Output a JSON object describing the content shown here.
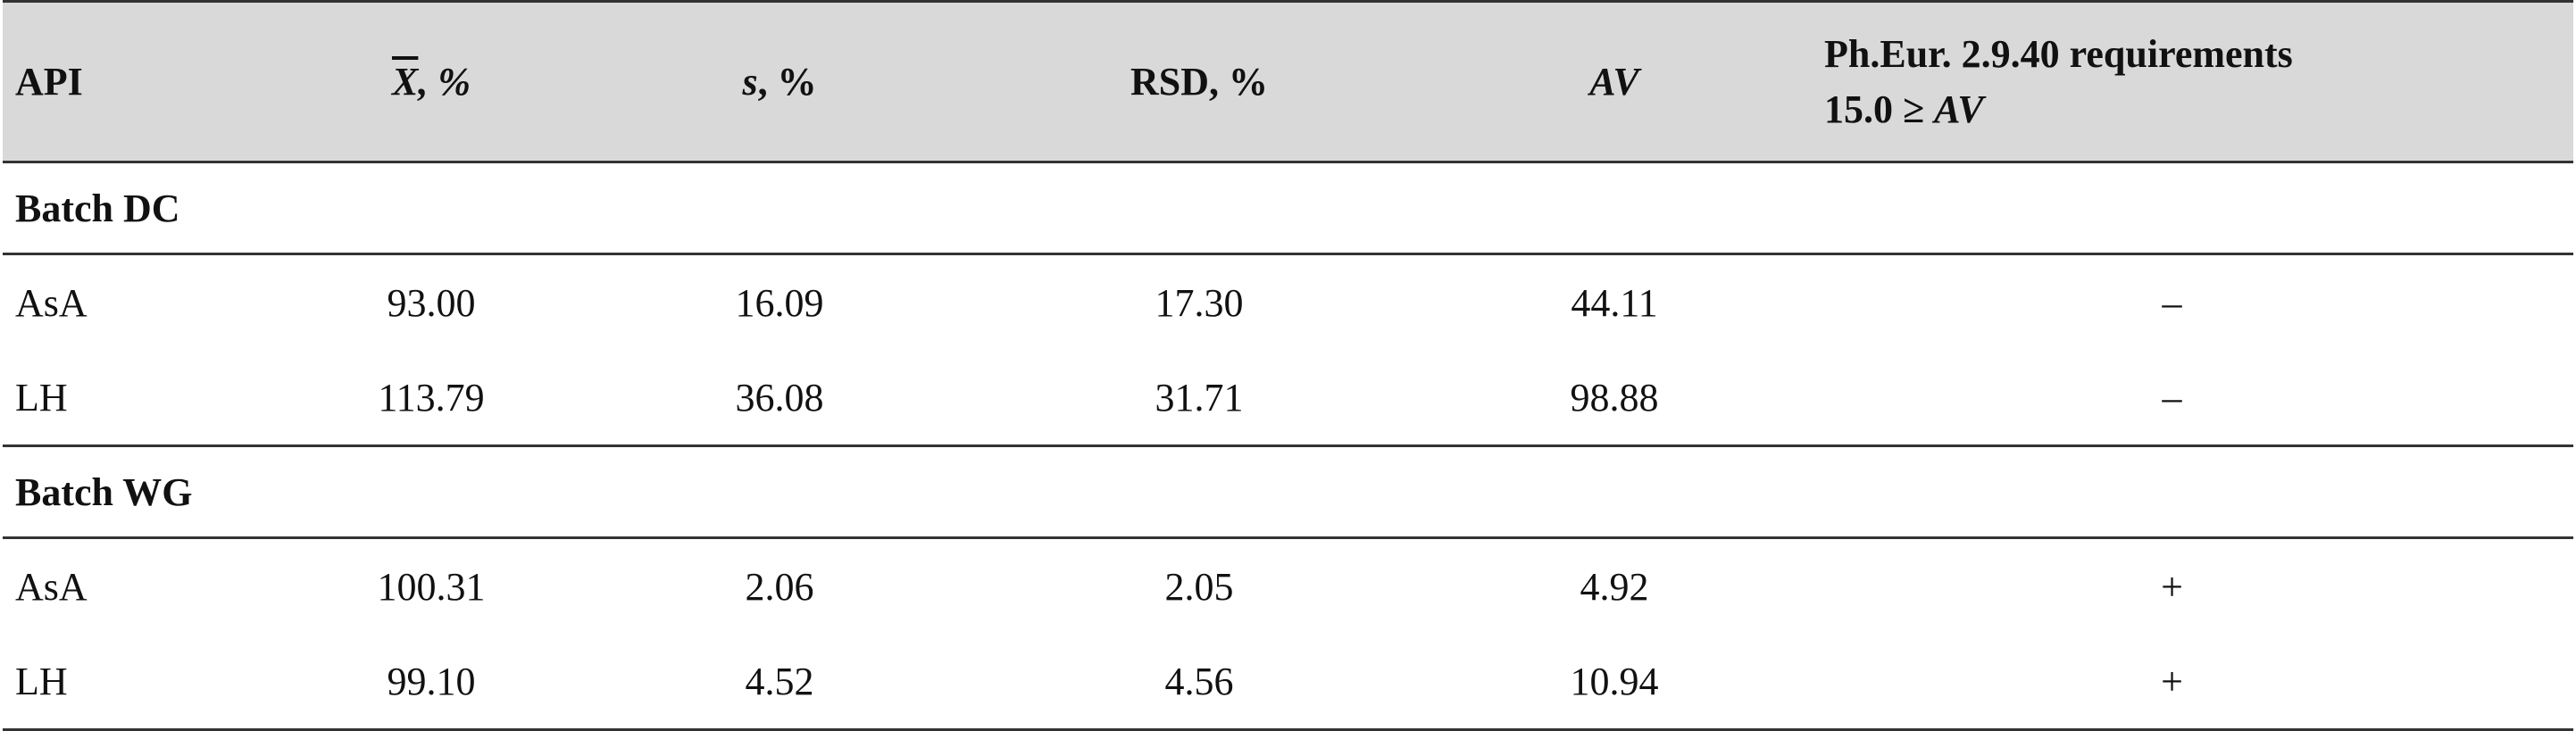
{
  "table": {
    "headers": {
      "api": "API",
      "mean_symbol": "X",
      "mean_suffix": ", %",
      "s_symbol": "s",
      "s_suffix": ", %",
      "rsd": "RSD, %",
      "av": "AV",
      "req_line1": "Ph.Eur. 2.9.40 requirements",
      "req_line2_prefix": "15.0 ≥ ",
      "req_line2_av": "AV"
    },
    "groups": [
      {
        "title": "Batch DC",
        "rows": [
          {
            "api": "AsA",
            "mean": "93.00",
            "s": "16.09",
            "rsd": "17.30",
            "av": "44.11",
            "req": "–"
          },
          {
            "api": "LH",
            "mean": "113.79",
            "s": "36.08",
            "rsd": "31.71",
            "av": "98.88",
            "req": "–"
          }
        ]
      },
      {
        "title": "Batch WG",
        "rows": [
          {
            "api": "AsA",
            "mean": "100.31",
            "s": "2.06",
            "rsd": "2.05",
            "av": "4.92",
            "req": "+"
          },
          {
            "api": "LH",
            "mean": "99.10",
            "s": "4.52",
            "rsd": "4.56",
            "av": "10.94",
            "req": "+"
          }
        ]
      }
    ]
  }
}
